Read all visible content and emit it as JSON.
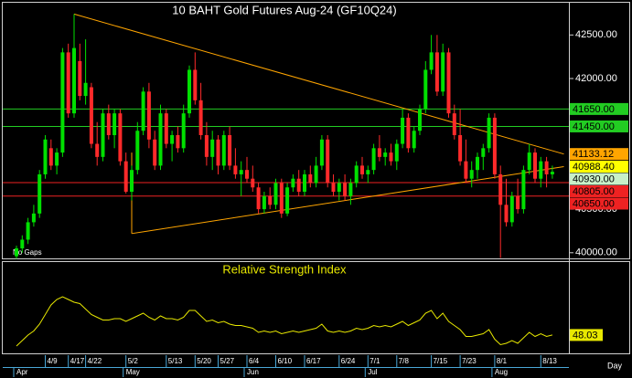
{
  "chart_data": [
    {
      "type": "candlestick",
      "title": "10  BAHT  Gold Futures  Aug-24  (GF10Q24)",
      "annotation": "No Gaps",
      "up_color": "#00e000",
      "down_color": "#ff2a2a",
      "trend_color": "#ffa500",
      "ylim": [
        39935,
        42870
      ],
      "yticks": [
        {
          "value": 42500,
          "label": "42500.00"
        },
        {
          "value": 42000,
          "label": "42000.00"
        },
        {
          "value": 40500,
          "label": "40500.00"
        },
        {
          "value": 40000,
          "label": "40000.00"
        }
      ],
      "open": [
        39960,
        40050,
        40150,
        40350,
        40450,
        40900,
        41200,
        41000,
        41150,
        42300,
        41600,
        42200,
        41800,
        41900,
        41250,
        41100,
        41600,
        41350,
        41600,
        41050,
        40700,
        40950,
        41400,
        41850,
        41300,
        41000,
        41600,
        41250,
        41350,
        41200,
        41600,
        42100,
        41750,
        41350,
        41100,
        41300,
        41000,
        41350,
        41000,
        40900,
        40950,
        40850,
        40750,
        40500,
        40650,
        40550,
        40800,
        40450,
        40750,
        40850,
        40700,
        40900,
        40800,
        41000,
        41300,
        40800,
        40700,
        40800,
        40650,
        40800,
        41000,
        40900,
        40950,
        41200,
        41100,
        41150,
        41050,
        41250,
        41550,
        41200,
        41400,
        41650,
        42100,
        42300,
        41850,
        42300,
        41600,
        41350,
        41050,
        40850,
        40950,
        41100,
        41200,
        41550,
        40900,
        40550,
        40350,
        40650,
        40500,
        40950,
        41150,
        40850,
        41050,
        40900
      ],
      "high": [
        40080,
        40200,
        40400,
        40550,
        40950,
        41350,
        41300,
        41200,
        42350,
        42400,
        42740,
        42400,
        42450,
        41950,
        41500,
        41650,
        41700,
        41650,
        41650,
        41150,
        41000,
        41500,
        41900,
        41950,
        41400,
        41700,
        41650,
        41400,
        41450,
        41700,
        42150,
        42300,
        41950,
        41500,
        41400,
        41350,
        41400,
        41450,
        41200,
        41050,
        41100,
        41000,
        40800,
        40700,
        40750,
        40850,
        40850,
        40800,
        40900,
        40950,
        40950,
        41000,
        41100,
        41350,
        41350,
        40900,
        40850,
        40900,
        40850,
        41050,
        41100,
        41000,
        41250,
        41350,
        41200,
        41250,
        41300,
        41650,
        41600,
        41450,
        41700,
        42200,
        42500,
        42500,
        42400,
        42350,
        41700,
        41650,
        41300,
        41050,
        41150,
        41250,
        41600,
        41600,
        41000,
        40850,
        40700,
        40850,
        41000,
        41250,
        41200,
        41100,
        41100,
        41000
      ],
      "low": [
        39930,
        40000,
        40100,
        40300,
        40400,
        40850,
        40950,
        40900,
        41100,
        41550,
        41550,
        41750,
        41700,
        41200,
        41000,
        41050,
        41300,
        41200,
        41000,
        40680,
        40600,
        40900,
        41350,
        41200,
        40950,
        40950,
        41200,
        41050,
        41150,
        41150,
        41550,
        41700,
        41300,
        41000,
        40950,
        40900,
        40950,
        40950,
        40850,
        40650,
        40800,
        40700,
        40450,
        40450,
        40500,
        40500,
        40400,
        40420,
        40700,
        40650,
        40650,
        40750,
        40750,
        40950,
        40750,
        40650,
        40600,
        40600,
        40550,
        40750,
        40850,
        40800,
        40900,
        41050,
        41000,
        41000,
        40950,
        41200,
        41150,
        41150,
        41350,
        41600,
        42050,
        41800,
        41800,
        41550,
        41300,
        41000,
        40800,
        40750,
        40850,
        40950,
        41150,
        40850,
        39940,
        40300,
        40300,
        40450,
        40450,
        40900,
        40800,
        40750,
        40750,
        40850
      ],
      "close": [
        40050,
        40150,
        40350,
        40450,
        40900,
        41300,
        41000,
        41150,
        42300,
        41600,
        42350,
        41800,
        41950,
        41250,
        41100,
        41600,
        41350,
        41600,
        41050,
        40700,
        40950,
        41400,
        41850,
        41300,
        41000,
        41600,
        41250,
        41350,
        41200,
        41600,
        42100,
        41750,
        41350,
        41100,
        41300,
        41000,
        41350,
        41000,
        40900,
        40950,
        40850,
        40750,
        40500,
        40650,
        40550,
        40800,
        40450,
        40750,
        40850,
        40700,
        40900,
        40800,
        41000,
        41300,
        40800,
        40700,
        40800,
        40650,
        40800,
        41000,
        40900,
        40950,
        41200,
        41100,
        41150,
        41050,
        41250,
        41550,
        41200,
        41400,
        41650,
        42100,
        42300,
        41850,
        42300,
        41600,
        41350,
        41050,
        40850,
        40950,
        41100,
        41200,
        41550,
        40900,
        40550,
        40350,
        40650,
        40500,
        40950,
        41150,
        40850,
        41050,
        40900,
        40930
      ],
      "trendlines": [
        {
          "x": [
            10,
            95
          ],
          "values": [
            42740,
            41133.12
          ]
        },
        {
          "x": [
            20,
            95
          ],
          "values": [
            40220,
            40988.4
          ]
        },
        {
          "x": [
            20,
            20
          ],
          "values": [
            41150,
            40220
          ]
        }
      ],
      "levels": [
        {
          "value": 41650,
          "label": "41650.00",
          "color": "#22cc22",
          "line": true
        },
        {
          "value": 41450,
          "label": "41450.00",
          "color": "#22cc22",
          "line": true
        },
        {
          "value": 41133.12,
          "label": "41133.12",
          "color": "#ffa500",
          "line": false
        },
        {
          "value": 40988.4,
          "label": "40988.40",
          "color": "#ffff00",
          "line": false
        },
        {
          "value": 40930,
          "label": "40930.00",
          "color": "#c8f0c8",
          "line": false
        },
        {
          "value": 40805,
          "label": "40805.00",
          "color": "#ee2222",
          "line": true
        },
        {
          "value": 40650,
          "label": "40650.00",
          "color": "#ee2222",
          "line": true
        }
      ]
    },
    {
      "type": "line",
      "title": "Relative Strength Index",
      "color": "#e8e800",
      "ylim": [
        42,
        72
      ],
      "value_label": "48.03",
      "x_label": "Day",
      "values": [
        44,
        46,
        48,
        49.5,
        52,
        55.5,
        59,
        61,
        62,
        61,
        60,
        59.5,
        57.5,
        55.5,
        54.5,
        53.5,
        53.5,
        54,
        54,
        53,
        54,
        55,
        56,
        54.5,
        53.5,
        55,
        54,
        54,
        53.5,
        54.5,
        57,
        57,
        55,
        53,
        53.5,
        52.5,
        53,
        52,
        51.5,
        51.5,
        51,
        50.5,
        49,
        49.5,
        49,
        49.5,
        48.5,
        49,
        49.5,
        49,
        49.5,
        50,
        50.5,
        52,
        49.5,
        49,
        49.5,
        49,
        49.5,
        50.5,
        50,
        50.5,
        51.5,
        51,
        51.5,
        51,
        52,
        53,
        51.5,
        52.5,
        53.5,
        56,
        57,
        54,
        56,
        53,
        51.5,
        50,
        47.5,
        47.5,
        48,
        48.5,
        50,
        46.5,
        44.5,
        45,
        46,
        45,
        47,
        49,
        47.5,
        48.5,
        47.5,
        48.03
      ],
      "categories": [
        null,
        null,
        null,
        null,
        null,
        "4/9",
        null,
        null,
        null,
        "4/17",
        null,
        null,
        "4/22",
        null,
        null,
        null,
        null,
        null,
        null,
        "5/2",
        null,
        null,
        null,
        null,
        null,
        null,
        "5/13",
        null,
        null,
        null,
        null,
        "5/20",
        null,
        null,
        null,
        "5/27",
        null,
        null,
        null,
        null,
        "6/4",
        null,
        null,
        null,
        null,
        "6/10",
        null,
        null,
        null,
        null,
        "6/17",
        null,
        null,
        null,
        null,
        null,
        "6/24",
        null,
        null,
        null,
        null,
        "7/1",
        null,
        null,
        null,
        null,
        "7/8",
        null,
        null,
        null,
        null,
        null,
        "7/15",
        null,
        null,
        null,
        null,
        "7/23",
        null,
        null,
        null,
        null,
        null,
        "8/1",
        null,
        null,
        null,
        null,
        null,
        null,
        null,
        "8/13",
        null,
        null
      ],
      "month_categories": [
        "Apr",
        null,
        null,
        null,
        null,
        null,
        null,
        null,
        null,
        null,
        null,
        null,
        null,
        null,
        null,
        null,
        null,
        null,
        null,
        "May",
        null,
        null,
        null,
        null,
        null,
        null,
        null,
        null,
        null,
        null,
        null,
        null,
        null,
        null,
        null,
        null,
        null,
        null,
        null,
        null,
        "Jun",
        null,
        null,
        null,
        null,
        null,
        null,
        null,
        null,
        null,
        null,
        null,
        null,
        null,
        null,
        null,
        null,
        null,
        null,
        null,
        null,
        "Jul",
        null,
        null,
        null,
        null,
        null,
        null,
        null,
        null,
        null,
        null,
        null,
        null,
        null,
        null,
        null,
        null,
        null,
        null,
        null,
        null,
        null,
        "Aug",
        null,
        null,
        null,
        null,
        null,
        null,
        null,
        null,
        null,
        null
      ]
    }
  ]
}
